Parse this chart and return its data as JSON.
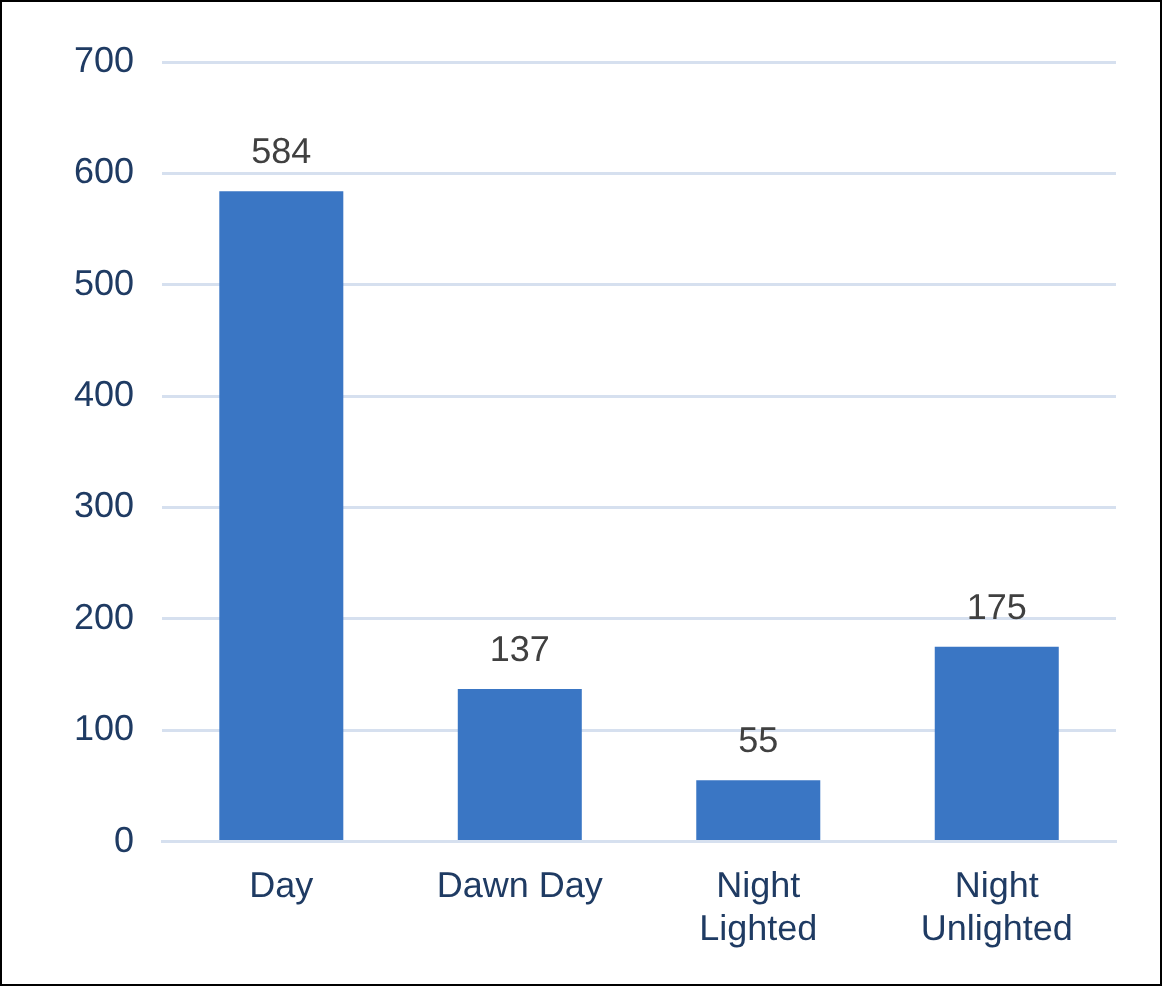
{
  "chart_data": {
    "type": "bar",
    "categories": [
      "Day",
      "Dawn Day",
      "Night Lighted",
      "Night Unlighted"
    ],
    "values": [
      584,
      137,
      55,
      175
    ],
    "color": "#3a76c4",
    "ylim": [
      0,
      700
    ],
    "yticks": [
      0,
      100,
      200,
      300,
      400,
      500,
      600,
      700
    ],
    "grid": "y",
    "data_labels": true,
    "legend": false
  }
}
